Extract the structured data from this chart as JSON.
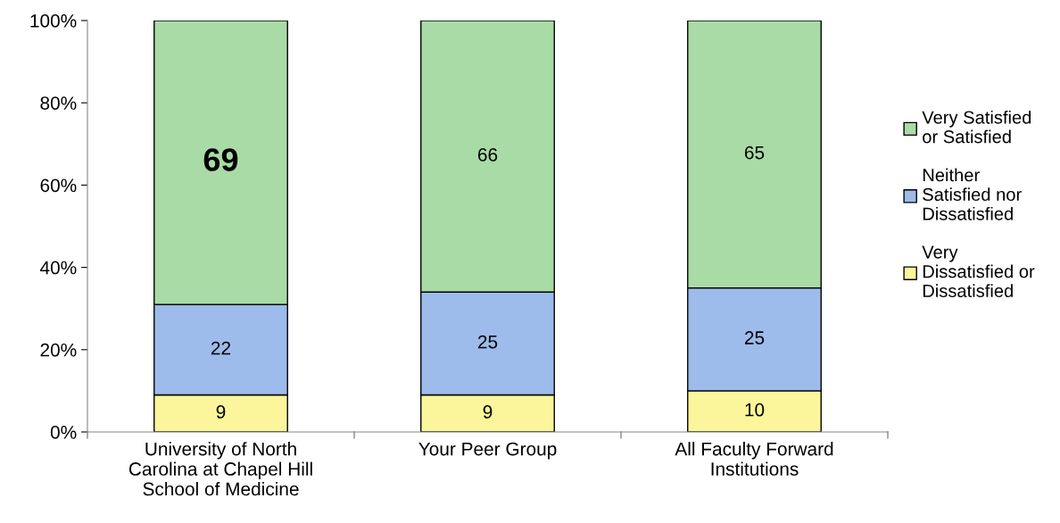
{
  "chart_data": {
    "type": "bar",
    "stacked": true,
    "categories": [
      "University of North\nCarolina at Chapel Hill\nSchool of Medicine",
      "Your Peer Group",
      "All Faculty Forward\nInstitutions"
    ],
    "series": [
      {
        "name": "Very\nDissatisfied or\nDissatisfied",
        "color": "#fbf59b",
        "values": [
          9,
          9,
          10
        ]
      },
      {
        "name": "Neither\nSatisfied nor\nDissatisfied",
        "color": "#9dbbeb",
        "values": [
          22,
          25,
          25
        ]
      },
      {
        "name": "Very Satisfied\nor Satisfied",
        "color": "#a9dba6",
        "values": [
          69,
          66,
          65
        ]
      }
    ],
    "ylim": [
      0,
      100
    ],
    "yticks": [
      {
        "value": 0,
        "label": "0%"
      },
      {
        "value": 20,
        "label": "20%"
      },
      {
        "value": 40,
        "label": "40%"
      },
      {
        "value": 60,
        "label": "60%"
      },
      {
        "value": 80,
        "label": "80%"
      },
      {
        "value": 100,
        "label": "100%"
      }
    ],
    "data_labels": true,
    "legend": "right",
    "grid": false
  }
}
